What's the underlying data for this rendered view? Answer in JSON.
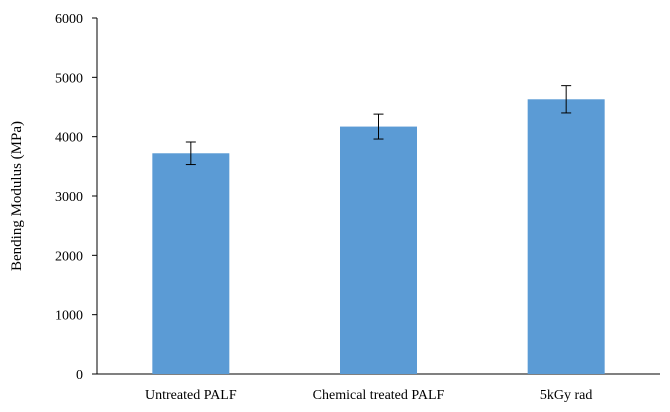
{
  "chart_data": {
    "type": "bar",
    "title": "",
    "xlabel": "",
    "ylabel": "Bending Modulus (MPa)",
    "categories": [
      "Untreated PALF",
      "Chemical treated PALF",
      "5kGy rad"
    ],
    "values": [
      3720,
      4170,
      4630
    ],
    "error": [
      190,
      210,
      230
    ],
    "ylim": [
      0,
      6000
    ],
    "yticks": [
      0,
      1000,
      2000,
      3000,
      4000,
      5000,
      6000
    ],
    "ytick_labels": [
      "0",
      "1000",
      "2000",
      "3000",
      "4000",
      "5000",
      "6000"
    ],
    "grid": false,
    "legend": "none",
    "bar_color": "#5b9bd5",
    "axis_color": "#000000"
  }
}
